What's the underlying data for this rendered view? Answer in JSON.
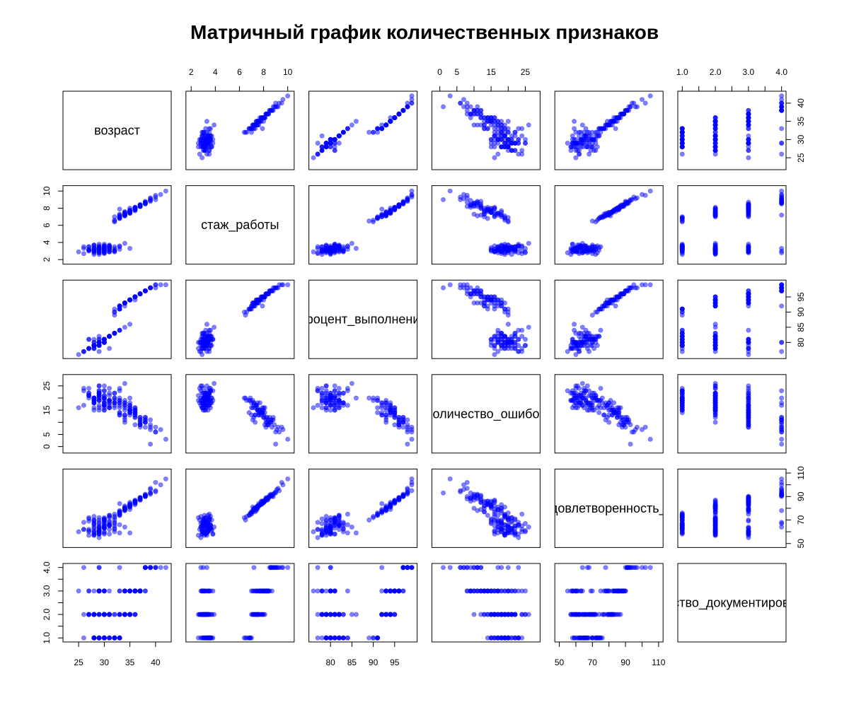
{
  "chart_data": {
    "type": "scatter",
    "title": "Матричный график количественных признаков",
    "point_color": "#0000ff",
    "point_opacity": 0.5,
    "variables": [
      {
        "name": "возраст",
        "range": [
          22.5,
          42.5
        ],
        "ticks": [
          25,
          30,
          35,
          40
        ],
        "tick_labels": [
          "25",
          "30",
          "35",
          "40"
        ]
      },
      {
        "name": "стаж_работы",
        "range": [
          1.8,
          10.3
        ],
        "ticks": [
          2,
          4,
          6,
          8,
          10
        ],
        "tick_labels": [
          "2",
          "4",
          "6",
          "8",
          "10"
        ]
      },
      {
        "name": "процент_выполнения",
        "range": [
          75.6,
          99.6
        ],
        "ticks": [
          80,
          85,
          90,
          95
        ],
        "tick_labels": [
          "80",
          "85",
          "90",
          "95"
        ]
      },
      {
        "name": "количество_ошибок",
        "range": [
          -1.5,
          28.5
        ],
        "ticks": [
          0,
          5,
          10,
          15,
          20,
          25
        ],
        "tick_labels": [
          "0",
          "5",
          "15",
          "25"
        ],
        "tick_label_values": [
          0,
          5,
          15,
          25
        ]
      },
      {
        "name": "удовлетворенность_б",
        "range": [
          49,
          111
        ],
        "ticks": [
          50,
          60,
          70,
          80,
          90,
          100,
          110
        ],
        "tick_labels": [
          "50",
          "70",
          "90",
          "110"
        ],
        "tick_label_values": [
          50,
          70,
          90,
          110
        ]
      },
      {
        "name": "качество_документирования",
        "range": [
          0.95,
          4.05
        ],
        "ticks": [
          1,
          1.5,
          2,
          2.5,
          3,
          3.5,
          4
        ],
        "tick_labels": [
          "1.0",
          "2.0",
          "3.0",
          "4.0"
        ],
        "tick_label_values": [
          1,
          2,
          3,
          4
        ]
      }
    ],
    "diagonal_labels": [
      "возраст",
      "стаж_работы",
      "процент_выполнения",
      "количество_ошибок",
      "удовлетворенность_б",
      "качество_документирования"
    ],
    "cluster_a": {
      "x": [
        30,
        28,
        29,
        31,
        27,
        30,
        32,
        29,
        28,
        30,
        31,
        29,
        33,
        28,
        30,
        27,
        29,
        31,
        30,
        28,
        32,
        29,
        30,
        26,
        31,
        29,
        28,
        30,
        33,
        29,
        31,
        27,
        30,
        28,
        29,
        32,
        30,
        31,
        28,
        29,
        30,
        26,
        29,
        31,
        28,
        30,
        34,
        29,
        27,
        30,
        32,
        28,
        29,
        31,
        30,
        25,
        29,
        28,
        30,
        31,
        29,
        27,
        33,
        30,
        28,
        29,
        31,
        30,
        28,
        26,
        32,
        29,
        30,
        28,
        31,
        27,
        29,
        30,
        35,
        28,
        31,
        29,
        30,
        27,
        29,
        32,
        28,
        30,
        29,
        31
      ],
      "y": [
        3.3,
        3.0,
        3.5,
        2.9,
        3.2,
        3.6,
        3.1,
        2.8,
        3.4,
        3.0,
        3.7,
        3.2,
        3.5,
        2.6,
        3.3,
        3.1,
        2.9,
        3.6,
        3.4,
        3.2,
        3.0,
        3.8,
        3.1,
        2.7,
        3.4,
        3.3,
        3.0,
        2.9,
        3.6,
        3.2,
        3.5,
        3.1,
        2.8,
        3.7,
        3.3,
        3.0,
        3.4,
        3.2,
        2.9,
        3.6,
        3.1,
        3.5,
        3.3,
        3.0,
        2.8,
        3.2,
        3.9,
        3.4,
        3.1,
        2.7,
        3.5,
        3.3,
        3.0,
        3.6,
        3.2,
        2.9,
        3.4,
        3.1,
        3.8,
        3.3,
        3.0,
        3.5,
        3.2,
        2.8,
        3.6,
        3.4,
        3.1,
        3.0,
        3.7,
        3.3,
        2.9,
        3.2,
        3.5,
        3.1,
        3.4,
        3.0,
        2.6,
        3.6,
        3.3,
        3.2,
        2.9,
        3.4,
        3.1,
        3.5,
        2.8,
        3.3,
        3.0,
        3.6,
        3.2,
        3.4
      ],
      "p": [
        80,
        79,
        82,
        78,
        81,
        80,
        83,
        77,
        80,
        81,
        82,
        79,
        84,
        78,
        80,
        81,
        79,
        82,
        80,
        78,
        83,
        81,
        80,
        77,
        82,
        79,
        80,
        81,
        84,
        79,
        82,
        78,
        80,
        81,
        79,
        83,
        80,
        82,
        78,
        79,
        81,
        77,
        80,
        82,
        79,
        80,
        85,
        81,
        78,
        80,
        83,
        79,
        80,
        82,
        81,
        76,
        80,
        79,
        81,
        82,
        80,
        78,
        84,
        81,
        79,
        80,
        82,
        81,
        79,
        77,
        83,
        80,
        81,
        79,
        82,
        78,
        80,
        81,
        86,
        79,
        82,
        80,
        81,
        78,
        80,
        83,
        79,
        81,
        80,
        82
      ],
      "e": [
        20,
        18,
        22,
        16,
        21,
        19,
        17,
        23,
        20,
        15,
        18,
        22,
        24,
        19,
        17,
        21,
        25,
        16,
        20,
        18,
        22,
        19,
        15,
        24,
        17,
        21,
        20,
        18,
        23,
        16,
        19,
        22,
        17,
        20,
        25,
        18,
        21,
        16,
        19,
        23,
        20,
        17,
        22,
        18,
        19,
        21,
        26,
        15,
        20,
        18,
        22,
        19,
        17,
        24,
        20,
        16,
        21,
        18,
        23,
        19,
        20,
        22,
        17,
        25,
        18,
        21,
        19,
        16,
        20,
        23,
        18,
        22,
        17,
        20,
        19,
        24,
        21,
        18,
        20,
        15,
        22,
        19,
        17,
        21,
        20,
        18,
        16,
        23,
        19,
        21
      ],
      "s": [
        65,
        60,
        70,
        58,
        72,
        63,
        68,
        55,
        66,
        71,
        62,
        59,
        75,
        57,
        64,
        69,
        61,
        73,
        60,
        67,
        65,
        58,
        70,
        62,
        74,
        63,
        59,
        68,
        66,
        61,
        72,
        57,
        64,
        70,
        60,
        67,
        63,
        69,
        58,
        65,
        71,
        62,
        60,
        66,
        73,
        59,
        64,
        68,
        61,
        70,
        63,
        57,
        67,
        65,
        72,
        60,
        62,
        69,
        58,
        66,
        64,
        71,
        59,
        67,
        63,
        60,
        74,
        65,
        61,
        68,
        62,
        58,
        70,
        64,
        66,
        60,
        72,
        63,
        59,
        67,
        65,
        61,
        69,
        62,
        64,
        60,
        70,
        66,
        58,
        68
      ],
      "q": [
        1,
        2,
        1,
        3,
        2,
        1,
        2,
        3,
        1,
        2,
        2,
        1,
        3,
        2,
        1,
        2,
        3,
        1,
        2,
        1,
        2,
        3,
        1,
        2,
        1,
        2,
        3,
        2,
        1,
        2,
        1,
        3,
        2,
        1,
        2,
        1,
        3,
        2,
        2,
        1,
        2,
        1,
        3,
        2,
        1,
        2,
        2,
        1,
        3,
        2,
        1,
        2,
        4,
        1,
        2,
        3,
        1,
        2,
        1,
        2,
        3,
        2,
        1,
        2,
        1,
        3,
        2,
        1,
        2,
        4,
        1,
        2,
        3,
        1,
        2,
        2,
        1,
        3,
        2,
        1,
        2,
        1,
        3,
        2,
        4,
        1,
        2,
        1,
        3,
        2
      ]
    },
    "cluster_b": {
      "x": [
        34,
        36,
        33,
        38,
        35,
        37,
        32,
        39,
        34,
        36,
        35,
        33,
        40,
        37,
        34,
        36,
        38,
        33,
        35,
        41,
        34,
        37,
        36,
        33,
        39,
        35,
        34,
        38,
        36,
        32,
        37,
        35,
        33,
        40,
        36,
        34,
        38,
        35,
        37,
        33,
        36,
        34,
        39,
        35,
        37,
        32,
        36,
        34,
        38,
        35,
        33,
        37,
        36,
        42,
        35,
        34,
        38,
        36,
        33,
        37,
        35,
        39,
        34,
        36,
        38,
        33,
        35,
        37,
        34,
        36,
        40,
        35,
        33,
        38,
        36,
        34,
        37,
        35,
        32,
        39
      ],
      "y": [
        7.5,
        8.0,
        7.2,
        8.5,
        7.8,
        8.2,
        7.0,
        8.8,
        7.6,
        8.1,
        7.4,
        7.9,
        9.3,
        8.3,
        7.1,
        7.7,
        8.6,
        7.3,
        8.0,
        9.6,
        7.5,
        8.4,
        7.8,
        6.9,
        8.9,
        7.6,
        7.2,
        8.7,
        8.1,
        6.6,
        8.2,
        7.4,
        7.0,
        9.0,
        8.0,
        7.3,
        8.5,
        7.7,
        8.3,
        6.8,
        7.9,
        7.1,
        9.1,
        7.5,
        8.2,
        6.4,
        7.8,
        7.2,
        8.6,
        7.6,
        7.0,
        8.4,
        7.9,
        10.0,
        7.5,
        7.3,
        8.7,
        8.0,
        6.9,
        8.3,
        7.7,
        9.2,
        7.4,
        8.1,
        8.8,
        7.1,
        7.6,
        8.4,
        7.2,
        7.9,
        9.5,
        7.5,
        6.8,
        8.6,
        8.0,
        7.3,
        8.2,
        7.7,
        6.5,
        9.0
      ],
      "p": [
        93,
        95,
        92,
        97,
        94,
        96,
        91,
        98,
        93,
        95,
        94,
        92,
        99,
        96,
        93,
        94,
        97,
        92,
        94,
        99,
        93,
        96,
        95,
        91,
        98,
        94,
        93,
        97,
        95,
        90,
        96,
        94,
        92,
        98,
        95,
        93,
        97,
        94,
        96,
        91,
        95,
        93,
        98,
        94,
        96,
        90,
        95,
        92,
        97,
        94,
        92,
        96,
        95,
        99,
        94,
        93,
        97,
        95,
        91,
        96,
        94,
        98,
        93,
        95,
        97,
        92,
        94,
        96,
        93,
        95,
        99,
        94,
        91,
        97,
        95,
        93,
        96,
        94,
        89,
        98
      ],
      "e": [
        15,
        12,
        18,
        10,
        14,
        8,
        16,
        11,
        13,
        9,
        17,
        14,
        6,
        12,
        19,
        15,
        10,
        13,
        16,
        7,
        18,
        11,
        14,
        20,
        9,
        15,
        12,
        8,
        16,
        19,
        11,
        17,
        13,
        6,
        15,
        10,
        12,
        18,
        9,
        14,
        16,
        11,
        7,
        15,
        12,
        20,
        13,
        17,
        10,
        14,
        18,
        9,
        15,
        3,
        16,
        13,
        11,
        12,
        19,
        10,
        15,
        8,
        17,
        14,
        12,
        16,
        13,
        9,
        18,
        14,
        8,
        15,
        19,
        11,
        13,
        16,
        10,
        14,
        20,
        1
      ],
      "r": [
        80,
        85,
        78,
        90,
        83,
        88,
        75,
        92,
        82,
        86,
        79,
        84,
        95,
        87,
        81,
        83,
        91,
        77,
        85,
        100,
        80,
        89,
        86,
        76,
        93,
        82,
        79,
        90,
        87,
        73,
        88,
        81,
        77,
        94,
        85,
        80,
        91,
        83,
        89,
        74,
        86,
        78,
        96,
        82,
        88,
        72,
        85,
        79,
        92,
        84,
        76,
        89,
        86,
        105,
        82,
        80,
        91,
        85,
        75,
        87,
        83,
        97,
        78,
        86,
        90,
        77,
        82,
        88,
        80,
        84,
        102,
        81,
        74,
        91,
        86,
        79,
        89,
        83,
        70,
        93
      ],
      "q": [
        3,
        2,
        4,
        3,
        2,
        3,
        1,
        4,
        2,
        3,
        3,
        2,
        4,
        3,
        2,
        3,
        4,
        2,
        3,
        4,
        2,
        3,
        3,
        1,
        4,
        2,
        3,
        3,
        2,
        1,
        3,
        2,
        3,
        4,
        3,
        2,
        4,
        3,
        3,
        1,
        2,
        3,
        4,
        2,
        3,
        1,
        3,
        2,
        4,
        3,
        2,
        3,
        3,
        4,
        2,
        3,
        4,
        3,
        1,
        3,
        2,
        4,
        3,
        3,
        4,
        2,
        3,
        3,
        2,
        3,
        4,
        2,
        1,
        4,
        3,
        2,
        3,
        3,
        1,
        4
      ]
    }
  }
}
